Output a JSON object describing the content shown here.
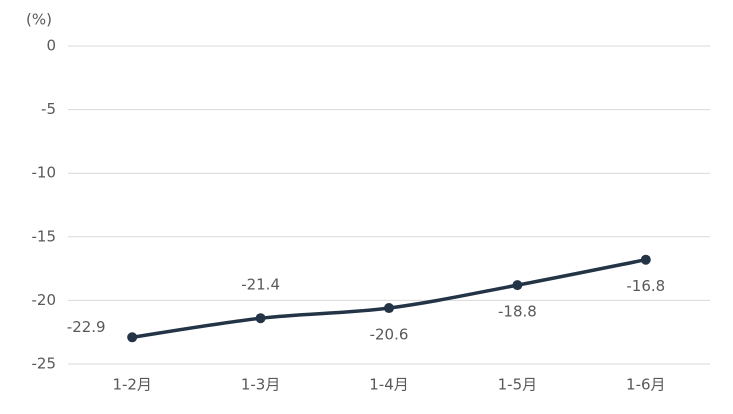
{
  "chart_data": {
    "type": "line",
    "unit_label": "(%)",
    "categories": [
      "1-2月",
      "1-3月",
      "1-4月",
      "1-5月",
      "1-6月"
    ],
    "values": [
      -22.9,
      -21.4,
      -20.6,
      -18.8,
      -16.8
    ],
    "color": "#243447",
    "ylim": [
      -25,
      0
    ],
    "yticks": [
      0,
      -5,
      -10,
      -15,
      -20,
      -25
    ],
    "grid": true
  }
}
